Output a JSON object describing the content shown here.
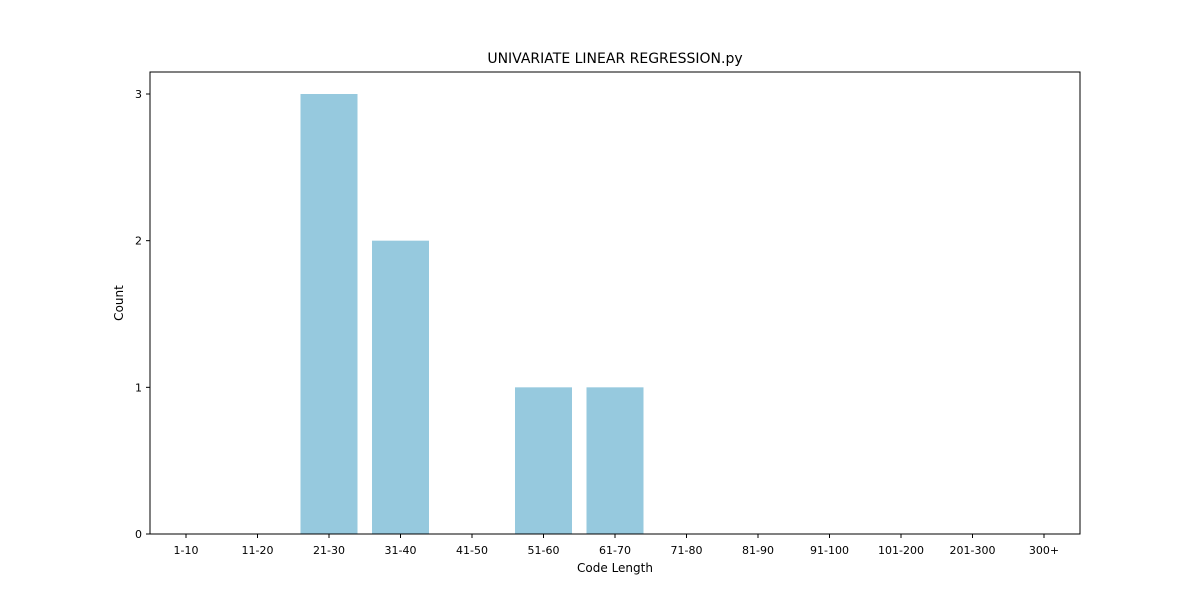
{
  "chart_data": {
    "type": "bar",
    "title": "UNIVARIATE LINEAR REGRESSION.py",
    "xlabel": "Code Length",
    "ylabel": "Count",
    "categories": [
      "1-10",
      "11-20",
      "21-30",
      "31-40",
      "41-50",
      "51-60",
      "61-70",
      "71-80",
      "81-90",
      "91-100",
      "101-200",
      "201-300",
      "300+"
    ],
    "values": [
      0,
      0,
      3,
      2,
      0,
      1,
      1,
      0,
      0,
      0,
      0,
      0,
      0
    ],
    "yticks": [
      "0",
      "1",
      "2",
      "3"
    ],
    "ylim": [
      0,
      3.15
    ],
    "bar_color": "#96c9de",
    "grid": false,
    "legend": "none"
  }
}
